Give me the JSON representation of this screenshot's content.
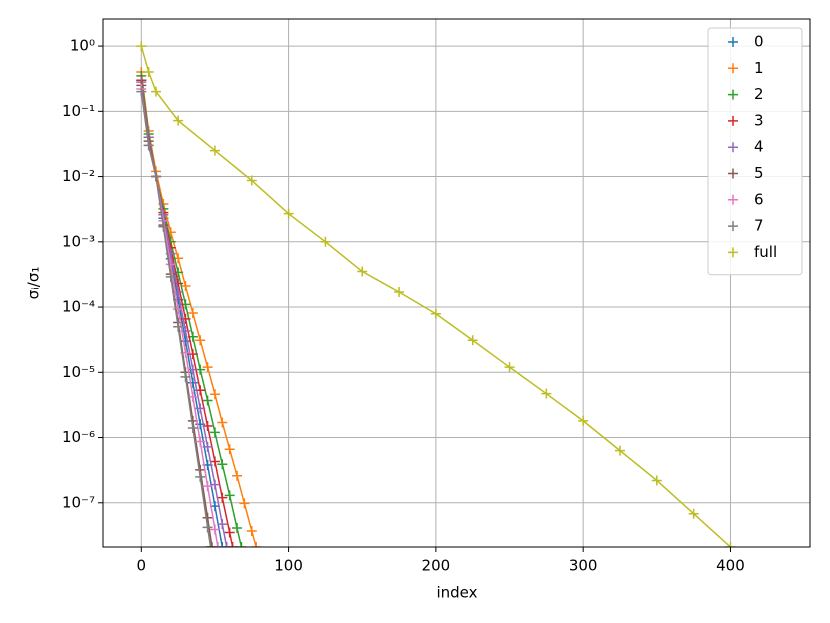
{
  "chart_data": {
    "type": "line",
    "xlabel": "index",
    "ylabel": "σᵢ/σ₁",
    "log_y": true,
    "grid": true,
    "legend": "upper right",
    "marker": "+",
    "xlim": [
      -26,
      454
    ],
    "xticks": [
      0,
      100,
      200,
      300,
      400
    ],
    "ylim": [
      2.1e-08,
      2.6
    ],
    "yticks": [
      {
        "value": 1,
        "label": "10⁰"
      },
      {
        "value": 0.1,
        "label": "10⁻¹"
      },
      {
        "value": 0.01,
        "label": "10⁻²"
      },
      {
        "value": 0.001,
        "label": "10⁻³"
      },
      {
        "value": 0.0001,
        "label": "10⁻⁴"
      },
      {
        "value": 1e-05,
        "label": "10⁻⁵"
      },
      {
        "value": 1e-06,
        "label": "10⁻⁶"
      },
      {
        "value": 1e-07,
        "label": "10⁻⁷"
      }
    ],
    "series": [
      {
        "name": "0",
        "color": "#1f77b4",
        "x": [
          0,
          5,
          10,
          15,
          20,
          25,
          30,
          35,
          40,
          45,
          50,
          55
        ],
        "values": [
          0.3,
          0.04,
          0.01,
          0.0023,
          0.00055,
          0.00013,
          3e-05,
          6.9e-06,
          1.6e-06,
          3.8e-07,
          8.9e-08,
          2.1e-08
        ]
      },
      {
        "name": "1",
        "color": "#ff7f0e",
        "x": [
          0,
          5,
          10,
          15,
          20,
          25,
          30,
          35,
          40,
          45,
          50,
          55,
          60,
          65,
          70,
          75,
          78
        ],
        "values": [
          0.4,
          0.05,
          0.012,
          0.0038,
          0.0014,
          0.00056,
          0.00021,
          8.1e-05,
          3.1e-05,
          1.2e-05,
          4.6e-06,
          1.7e-06,
          6.6e-07,
          2.6e-07,
          9.8e-08,
          3.7e-08,
          2.1e-08
        ]
      },
      {
        "name": "2",
        "color": "#2ca02c",
        "x": [
          0,
          5,
          10,
          15,
          20,
          25,
          30,
          35,
          40,
          45,
          50,
          55,
          60,
          65,
          68
        ],
        "values": [
          0.35,
          0.045,
          0.01,
          0.0032,
          0.001,
          0.00034,
          0.00011,
          3.5e-05,
          1.1e-05,
          3.7e-06,
          1.2e-06,
          3.9e-07,
          1.3e-07,
          4.1e-08,
          2.1e-08
        ]
      },
      {
        "name": "3",
        "color": "#d62728",
        "x": [
          0,
          5,
          10,
          15,
          20,
          25,
          30,
          35,
          40,
          45,
          50,
          55,
          60,
          62
        ],
        "values": [
          0.3,
          0.04,
          0.01,
          0.0028,
          0.00081,
          0.00023,
          6.6e-05,
          1.9e-05,
          5.3e-06,
          1.5e-06,
          4.3e-07,
          1.2e-07,
          3.5e-08,
          2.1e-08
        ]
      },
      {
        "name": "4",
        "color": "#9467bd",
        "x": [
          0,
          5,
          10,
          15,
          20,
          25,
          30,
          35,
          40,
          45,
          50,
          55,
          58
        ],
        "values": [
          0.28,
          0.04,
          0.01,
          0.0026,
          0.00066,
          0.00017,
          4.3e-05,
          1.1e-05,
          2.8e-06,
          7.2e-07,
          1.9e-07,
          4.7e-08,
          2.1e-08
        ]
      },
      {
        "name": "5",
        "color": "#8c564b",
        "x": [
          0,
          5,
          10,
          15,
          20,
          25,
          30,
          35,
          40,
          45,
          48
        ],
        "values": [
          0.25,
          0.035,
          0.01,
          0.0018,
          0.00032,
          5.8e-05,
          1e-05,
          1.8e-06,
          3.2e-07,
          5.9e-08,
          2.1e-08
        ]
      },
      {
        "name": "6",
        "color": "#e377c2",
        "x": [
          0,
          5,
          10,
          15,
          20,
          25,
          30,
          35,
          40,
          45,
          50,
          52
        ],
        "values": [
          0.22,
          0.03,
          0.01,
          0.0021,
          0.00045,
          9.3e-05,
          2e-05,
          4.2e-06,
          8.7e-07,
          1.8e-07,
          3.9e-08,
          2.1e-08
        ]
      },
      {
        "name": "7",
        "color": "#7f7f7f",
        "x": [
          0,
          5,
          10,
          15,
          20,
          25,
          30,
          35,
          40,
          45,
          47
        ],
        "values": [
          0.2,
          0.03,
          0.01,
          0.0017,
          0.00029,
          5e-05,
          8.5e-06,
          1.4e-06,
          2.5e-07,
          4.2e-08,
          2.1e-08
        ]
      },
      {
        "name": "full",
        "color": "#bcbd22",
        "x": [
          0,
          5,
          10,
          25,
          50,
          75,
          100,
          125,
          150,
          175,
          200,
          225,
          250,
          275,
          300,
          325,
          350,
          375,
          400
        ],
        "values": [
          1,
          0.4,
          0.2,
          0.072,
          0.025,
          0.0087,
          0.0027,
          0.001,
          0.00035,
          0.00017,
          7.9e-05,
          3.1e-05,
          1.2e-05,
          4.7e-06,
          1.8e-06,
          6.3e-07,
          2.2e-07,
          6.8e-08,
          2.1e-08
        ]
      }
    ]
  }
}
